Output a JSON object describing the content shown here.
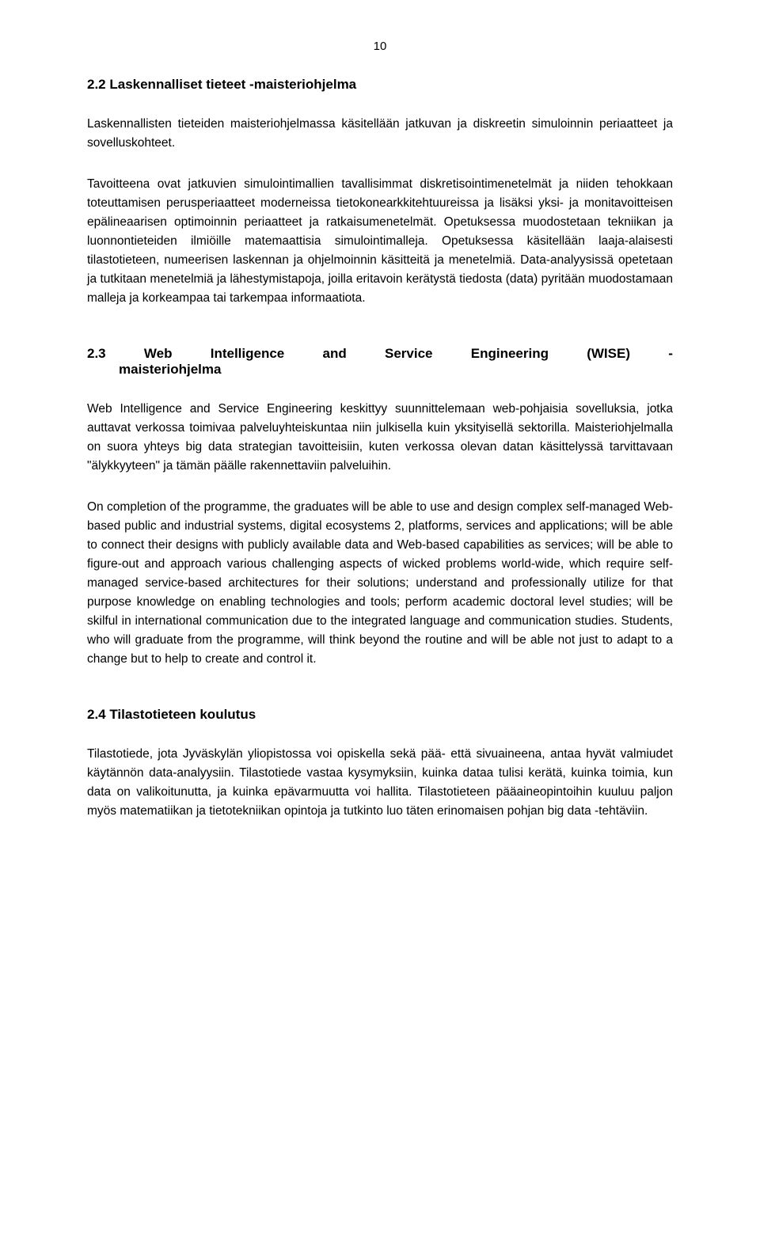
{
  "pageNumber": "10",
  "section22": {
    "heading": "2.2  Laskennalliset tieteet -maisteriohjelma",
    "para1": "Laskennallisten tieteiden maisteriohjelmassa käsitellään jatkuvan ja diskreetin simuloinnin periaatteet ja sovelluskohteet.",
    "para2": "Tavoitteena ovat jatkuvien simulointimallien tavallisimmat diskretisointimenetelmät ja niiden tehokkaan toteuttamisen perusperiaatteet moderneissa tietokonearkkitehtuureissa ja lisäksi yksi- ja monitavoitteisen epälineaarisen optimoinnin periaatteet ja ratkaisumenetelmät. Opetuksessa muodostetaan tekniikan ja luonnontieteiden ilmiöille matemaattisia simulointimalleja. Opetuksessa käsitellään laaja-alaisesti tilastotieteen, numeerisen laskennan ja ohjelmoinnin käsitteitä ja menetelmiä. Data-analyysissä opetetaan ja tutkitaan menetelmiä ja lähestymistapoja, joilla eritavoin kerätystä tiedosta (data) pyritään muodostamaan malleja ja korkeampaa tai tarkempaa informaatiota."
  },
  "section23": {
    "num": "2.3",
    "w1": "Web",
    "w2": "Intelligence",
    "w3": "and",
    "w4": "Service",
    "w5": "Engineering",
    "w6": "(WISE)",
    "w7": "-",
    "line2": "maisteriohjelma",
    "para1": "Web Intelligence and Service Engineering keskittyy suunnittelemaan web-pohjaisia sovelluksia, jotka auttavat verkossa toimivaa palveluyhteiskuntaa niin julkisella kuin yksityisellä sektorilla. Maisteriohjelmalla on suora yhteys big data strategian tavoitteisiin, kuten verkossa olevan datan käsittelyssä tarvittavaan \"älykkyyteen\" ja tämän päälle rakennettaviin palveluihin.",
    "para2": "On completion of the programme, the graduates will be able to use and design complex self-managed Web-based public and industrial systems, digital ecosystems 2, platforms, services and applications; will be able to connect their designs with publicly available data and Web-based capabilities as services; will be able to figure-out and approach various challenging aspects of wicked problems world-wide, which require self-managed service-based architectures for their solutions; understand and professionally utilize for that purpose knowledge on enabling technologies and tools; perform academic doctoral level studies; will be skilful in international communication due to the integrated language and communication studies. Students, who will graduate from the programme, will think beyond the routine and will be able not just to adapt to a change but to help to create and control it."
  },
  "section24": {
    "heading": "2.4  Tilastotieteen koulutus",
    "para1": "Tilastotiede, jota Jyväskylän yliopistossa voi opiskella sekä pää- että sivuaineena, antaa hyvät valmiudet käytännön data-analyysiin.  Tilastotiede vastaa kysymyksiin, kuinka dataa tulisi kerätä, kuinka toimia, kun data on valikoitunutta, ja kuinka epävarmuutta voi hallita. Tilastotieteen pääaineopintoihin kuuluu paljon myös matematiikan ja tietotekniikan opintoja ja tutkinto luo täten erinomaisen pohjan big data -tehtäviin."
  }
}
